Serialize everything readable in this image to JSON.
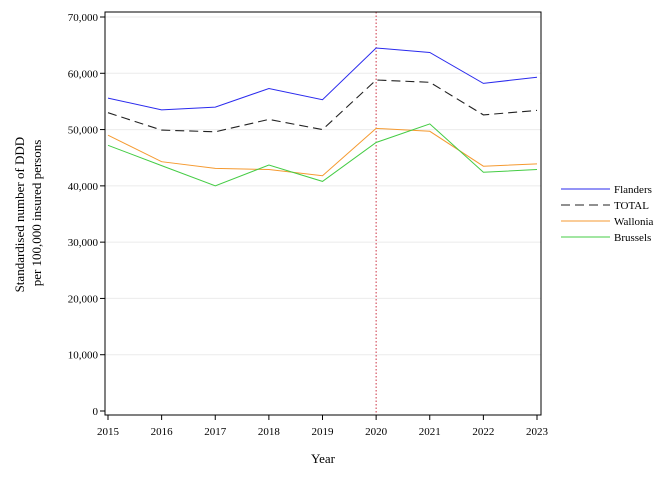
{
  "chart_data": {
    "type": "line",
    "title": "",
    "xlabel": "Year",
    "ylabel_lines": [
      "Standardised number of DDD",
      "per 100,000 insured persons"
    ],
    "x": [
      2015,
      2016,
      2017,
      2018,
      2019,
      2020,
      2021,
      2022,
      2023
    ],
    "x_tick_labels": [
      "2015",
      "2016",
      "2017",
      "2018",
      "2019",
      "2020",
      "2021",
      "2022",
      "2023"
    ],
    "ylim": [
      0,
      70000
    ],
    "y_ticks": [
      0,
      10000,
      20000,
      30000,
      40000,
      50000,
      60000,
      70000
    ],
    "y_tick_labels": [
      "0",
      "10,000",
      "20,000",
      "30,000",
      "40,000",
      "50,000",
      "60,000",
      "70,000"
    ],
    "grid": "horizontal",
    "legend_position": "right",
    "reference_line": {
      "x": 2020,
      "color": "#cc3344",
      "style": "dotted"
    },
    "series": [
      {
        "name": "Flanders",
        "color": "#2a2aee",
        "dash": "solid",
        "values": [
          55600,
          53500,
          54000,
          57300,
          55300,
          64500,
          63700,
          58200,
          59300
        ]
      },
      {
        "name": "TOTAL",
        "color": "#222222",
        "dash": "dashed",
        "values": [
          53000,
          49900,
          49600,
          51800,
          50000,
          58800,
          58400,
          52600,
          53400
        ]
      },
      {
        "name": "Wallonia",
        "color": "#f59a30",
        "dash": "solid",
        "values": [
          49000,
          44300,
          43100,
          42900,
          41800,
          50200,
          49700,
          43500,
          43900
        ]
      },
      {
        "name": "Brussels",
        "color": "#44cc44",
        "dash": "solid",
        "values": [
          47200,
          43600,
          40000,
          43700,
          40800,
          47700,
          51000,
          42400,
          42900
        ]
      }
    ]
  }
}
